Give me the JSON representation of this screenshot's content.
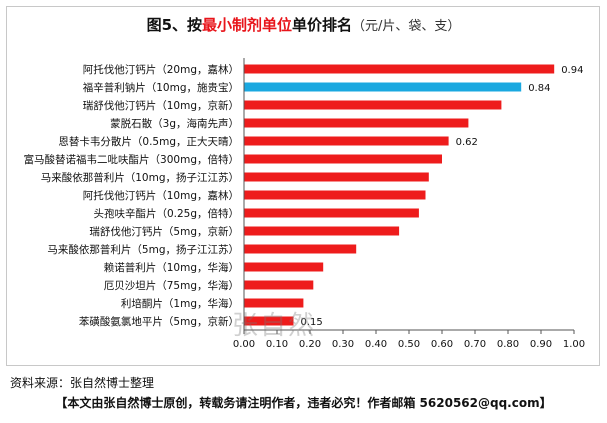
{
  "title": {
    "prefix": "图5、按",
    "highlight": "最小制剂单位",
    "suffix": "单价排名",
    "unit": "（元/片、袋、支）"
  },
  "source": "资料来源：张自然博士整理",
  "footer": "【本文由张自然博士原创，转载务请注明作者，违者必究！作者邮箱 5620562@qq.com】",
  "watermark": "张自然",
  "colors": {
    "default_bar": "#ee1c1c",
    "highlight_bar": "#1aa8e0"
  },
  "chart_data": {
    "type": "bar",
    "orientation": "horizontal",
    "categories": [
      "阿托伐他汀钙片（20mg，嘉林）",
      "福辛普利钠片（10mg，施贵宝）",
      "瑞舒伐他汀钙片（10mg，京新）",
      "蒙脱石散（3g，海南先声）",
      "恩替卡韦分散片（0.5mg，正大天晴）",
      "富马酸替诺福韦二吡呋酯片（300mg，倍特）",
      "马来酸依那普利片（10mg，扬子江江苏）",
      "阿托伐他汀钙片（10mg，嘉林）",
      "头孢呋辛酯片（0.25g，倍特）",
      "瑞舒伐他汀钙片（5mg，京新）",
      "马来酸依那普利片（5mg，扬子江江苏）",
      "赖诺普利片（10mg，华海）",
      "厄贝沙坦片（75mg，华海）",
      "利培酮片（1mg，华海）",
      "苯磺酸氨氯地平片（5mg，京新）"
    ],
    "values": [
      0.94,
      0.84,
      0.78,
      0.68,
      0.62,
      0.6,
      0.56,
      0.55,
      0.53,
      0.47,
      0.34,
      0.24,
      0.21,
      0.18,
      0.15
    ],
    "data_labels": [
      "0.94",
      "0.84",
      "",
      "",
      "0.62",
      "",
      "",
      "",
      "",
      "",
      "",
      "",
      "",
      "",
      "0.15"
    ],
    "highlight_index": 1,
    "xlim": [
      0,
      1.0
    ],
    "xticks": [
      "0.00",
      "0.10",
      "0.20",
      "0.30",
      "0.40",
      "0.50",
      "0.60",
      "0.70",
      "0.80",
      "0.90",
      "1.00"
    ],
    "grid": false,
    "legend": "none"
  }
}
